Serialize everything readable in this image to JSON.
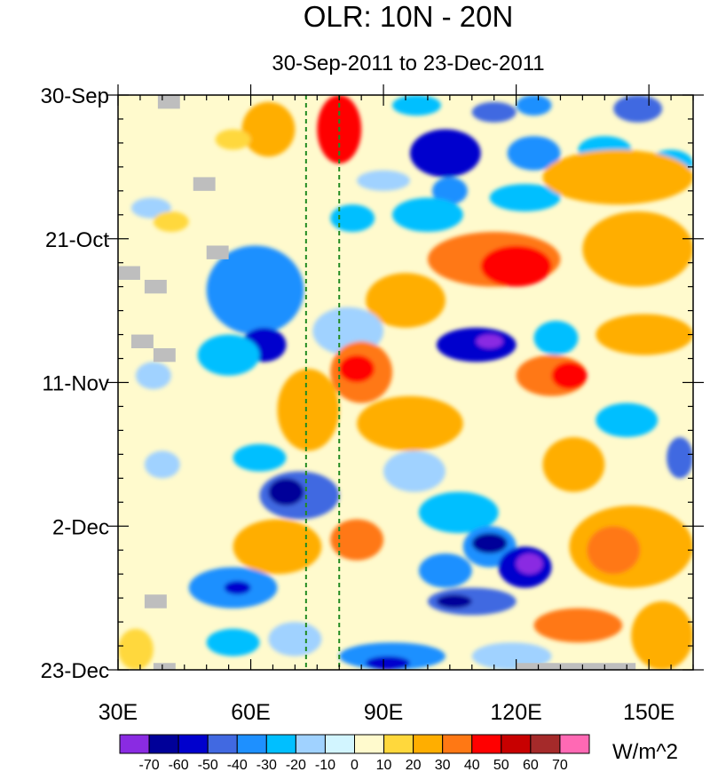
{
  "chart_data": {
    "type": "heatmap",
    "title": "OLR: 10N - 20N",
    "subtitle": "30-Sep-2011 to 23-Dec-2011",
    "x_axis": {
      "range": [
        30,
        160
      ],
      "unit": "degrees longitude",
      "ticks": [
        {
          "value": 30,
          "label": "30E"
        },
        {
          "value": 60,
          "label": "60E"
        },
        {
          "value": 90,
          "label": "90E"
        },
        {
          "value": 120,
          "label": "120E"
        },
        {
          "value": 150,
          "label": "150E"
        }
      ]
    },
    "y_axis": {
      "range": [
        0,
        84
      ],
      "unit": "days since 30-Sep-2011",
      "direction": "top-to-bottom",
      "ticks": [
        {
          "value": 0,
          "label": "30-Sep"
        },
        {
          "value": 21,
          "label": "21-Oct"
        },
        {
          "value": 42,
          "label": "11-Nov"
        },
        {
          "value": 63,
          "label": "2-Dec"
        },
        {
          "value": 84,
          "label": "23-Dec"
        }
      ]
    },
    "reference_lines": [
      {
        "orientation": "vertical",
        "x": 72.5,
        "style": "dashed",
        "color": "#228b22"
      },
      {
        "orientation": "vertical",
        "x": 80,
        "style": "dashed",
        "color": "#228b22"
      }
    ],
    "colorbar": {
      "units": "W/m^2",
      "levels": [
        "-70",
        "-60",
        "-50",
        "-40",
        "-30",
        "-20",
        "-10",
        "0",
        "10",
        "20",
        "30",
        "40",
        "50",
        "60",
        "70"
      ],
      "colors": [
        "#8a2be2",
        "#000099",
        "#0000cd",
        "#4169e1",
        "#1e90ff",
        "#00bfff",
        "#a0d2ff",
        "#d2f5ff",
        "#fffacd",
        "#ffd83c",
        "#ffae00",
        "#ff7814",
        "#ff0000",
        "#c80000",
        "#a52a2a",
        "#ff69b4"
      ]
    },
    "missing_color": "#bebebe",
    "anomaly_features": [
      {
        "x": [
          75,
          85
        ],
        "y": [
          0,
          10
        ],
        "value": 48
      },
      {
        "x": [
          58,
          70
        ],
        "y": [
          1,
          9
        ],
        "value": 26
      },
      {
        "x": [
          110,
          120
        ],
        "y": [
          1,
          4
        ],
        "value": -44
      },
      {
        "x": [
          120,
          128
        ],
        "y": [
          0,
          3
        ],
        "value": -33
      },
      {
        "x": [
          142,
          153
        ],
        "y": [
          0,
          4
        ],
        "value": -48
      },
      {
        "x": [
          92,
          103
        ],
        "y": [
          0,
          3
        ],
        "value": -30
      },
      {
        "x": [
          96,
          112
        ],
        "y": [
          5,
          12
        ],
        "value": -58
      },
      {
        "x": [
          118,
          130
        ],
        "y": [
          6,
          11
        ],
        "value": -38
      },
      {
        "x": [
          134,
          146
        ],
        "y": [
          6,
          10
        ],
        "value": -28
      },
      {
        "x": [
          150,
          160
        ],
        "y": [
          8,
          12
        ],
        "value": -30
      },
      {
        "x": [
          84,
          96
        ],
        "y": [
          11,
          14
        ],
        "value": -20
      },
      {
        "x": [
          101,
          109
        ],
        "y": [
          12,
          16
        ],
        "value": -38
      },
      {
        "x": [
          78,
          88
        ],
        "y": [
          16,
          20
        ],
        "value": -23
      },
      {
        "x": [
          92,
          108
        ],
        "y": [
          15,
          20
        ],
        "value": -30
      },
      {
        "x": [
          114,
          130
        ],
        "y": [
          13,
          17
        ],
        "value": -30
      },
      {
        "x": [
          126,
          160
        ],
        "y": [
          8,
          16
        ],
        "value": 25
      },
      {
        "x": [
          100,
          130
        ],
        "y": [
          20,
          28
        ],
        "value": 33
      },
      {
        "x": [
          112,
          128
        ],
        "y": [
          22,
          28
        ],
        "value": 44
      },
      {
        "x": [
          135,
          160
        ],
        "y": [
          17,
          28
        ],
        "value": 23
      },
      {
        "x": [
          86,
          104
        ],
        "y": [
          26,
          34
        ],
        "value": 22
      },
      {
        "x": [
          53,
          67
        ],
        "y": [
          24,
          32
        ],
        "value": -68
      },
      {
        "x": [
          50,
          72
        ],
        "y": [
          22,
          35
        ],
        "value": -38
      },
      {
        "x": [
          58,
          68
        ],
        "y": [
          34,
          39
        ],
        "value": -55
      },
      {
        "x": [
          48,
          62
        ],
        "y": [
          35,
          41
        ],
        "value": -22
      },
      {
        "x": [
          33,
          42
        ],
        "y": [
          15,
          18
        ],
        "value": -18
      },
      {
        "x": [
          52,
          60
        ],
        "y": [
          5,
          8
        ],
        "value": 15
      },
      {
        "x": [
          38,
          46
        ],
        "y": [
          17,
          20
        ],
        "value": 16
      },
      {
        "x": [
          74,
          90
        ],
        "y": [
          31,
          38
        ],
        "value": -15
      },
      {
        "x": [
          78,
          92
        ],
        "y": [
          36,
          45
        ],
        "value": 34
      },
      {
        "x": [
          80,
          88
        ],
        "y": [
          38,
          42
        ],
        "value": 48
      },
      {
        "x": [
          66,
          80
        ],
        "y": [
          40,
          52
        ],
        "value": 24
      },
      {
        "x": [
          84,
          108
        ],
        "y": [
          44,
          52
        ],
        "value": 23
      },
      {
        "x": [
          102,
          120
        ],
        "y": [
          34,
          39
        ],
        "value": -58
      },
      {
        "x": [
          111,
          117
        ],
        "y": [
          35,
          37
        ],
        "value": -72
      },
      {
        "x": [
          124,
          134
        ],
        "y": [
          33,
          38
        ],
        "value": -28
      },
      {
        "x": [
          120,
          136
        ],
        "y": [
          38,
          44
        ],
        "value": 33
      },
      {
        "x": [
          128,
          136
        ],
        "y": [
          39,
          43
        ],
        "value": 43
      },
      {
        "x": [
          138,
          160
        ],
        "y": [
          32,
          38
        ],
        "value": 24
      },
      {
        "x": [
          138,
          152
        ],
        "y": [
          45,
          50
        ],
        "value": -28
      },
      {
        "x": [
          126,
          140
        ],
        "y": [
          50,
          58
        ],
        "value": 22
      },
      {
        "x": [
          154,
          160
        ],
        "y": [
          50,
          56
        ],
        "value": -42
      },
      {
        "x": [
          62,
          80
        ],
        "y": [
          55,
          62
        ],
        "value": -48
      },
      {
        "x": [
          64,
          72
        ],
        "y": [
          56,
          60
        ],
        "value": -68
      },
      {
        "x": [
          56,
          68
        ],
        "y": [
          51,
          55
        ],
        "value": -25
      },
      {
        "x": [
          34,
          42
        ],
        "y": [
          39,
          43
        ],
        "value": -18
      },
      {
        "x": [
          36,
          44
        ],
        "y": [
          52,
          56
        ],
        "value": -14
      },
      {
        "x": [
          90,
          104
        ],
        "y": [
          52,
          58
        ],
        "value": -20
      },
      {
        "x": [
          56,
          76
        ],
        "y": [
          62,
          70
        ],
        "value": 20
      },
      {
        "x": [
          78,
          90
        ],
        "y": [
          62,
          68
        ],
        "value": 30
      },
      {
        "x": [
          98,
          116
        ],
        "y": [
          58,
          64
        ],
        "value": -22
      },
      {
        "x": [
          108,
          120
        ],
        "y": [
          63,
          69
        ],
        "value": -40
      },
      {
        "x": [
          110,
          118
        ],
        "y": [
          64,
          67
        ],
        "value": -62
      },
      {
        "x": [
          116,
          128
        ],
        "y": [
          66,
          72
        ],
        "value": -60
      },
      {
        "x": [
          120,
          126
        ],
        "y": [
          67,
          70
        ],
        "value": -72
      },
      {
        "x": [
          98,
          110
        ],
        "y": [
          67,
          72
        ],
        "value": -38
      },
      {
        "x": [
          100,
          120
        ],
        "y": [
          72,
          76
        ],
        "value": -50
      },
      {
        "x": [
          102,
          110
        ],
        "y": [
          73,
          75
        ],
        "value": -70
      },
      {
        "x": [
          132,
          160
        ],
        "y": [
          60,
          72
        ],
        "value": 24
      },
      {
        "x": [
          136,
          148
        ],
        "y": [
          63,
          70
        ],
        "value": 33
      },
      {
        "x": [
          46,
          66
        ],
        "y": [
          69,
          75
        ],
        "value": -34
      },
      {
        "x": [
          54,
          60
        ],
        "y": [
          71,
          73
        ],
        "value": -52
      },
      {
        "x": [
          50,
          62
        ],
        "y": [
          78,
          82
        ],
        "value": -30
      },
      {
        "x": [
          64,
          76
        ],
        "y": [
          77,
          82
        ],
        "value": -18
      },
      {
        "x": [
          80,
          104
        ],
        "y": [
          80,
          84
        ],
        "value": -32
      },
      {
        "x": [
          86,
          96
        ],
        "y": [
          82,
          84
        ],
        "value": -55
      },
      {
        "x": [
          110,
          128
        ],
        "y": [
          80,
          84
        ],
        "value": -18
      },
      {
        "x": [
          124,
          144
        ],
        "y": [
          75,
          80
        ],
        "value": 32
      },
      {
        "x": [
          146,
          160
        ],
        "y": [
          74,
          84
        ],
        "value": 22
      },
      {
        "x": [
          30,
          38
        ],
        "y": [
          78,
          84
        ],
        "value": 12
      }
    ],
    "missing_patches": [
      {
        "x": [
          39,
          44
        ],
        "y": [
          0,
          2
        ]
      },
      {
        "x": [
          47,
          52
        ],
        "y": [
          12,
          14
        ]
      },
      {
        "x": [
          50,
          55
        ],
        "y": [
          22,
          24
        ]
      },
      {
        "x": [
          30,
          35
        ],
        "y": [
          25,
          27
        ]
      },
      {
        "x": [
          36,
          41
        ],
        "y": [
          27,
          29
        ]
      },
      {
        "x": [
          33,
          38
        ],
        "y": [
          35,
          37
        ]
      },
      {
        "x": [
          38,
          43
        ],
        "y": [
          37,
          39
        ]
      },
      {
        "x": [
          36,
          41
        ],
        "y": [
          73,
          75
        ]
      },
      {
        "x": [
          38,
          43
        ],
        "y": [
          83,
          84
        ]
      },
      {
        "x": [
          120,
          147
        ],
        "y": [
          83,
          84
        ]
      }
    ]
  }
}
